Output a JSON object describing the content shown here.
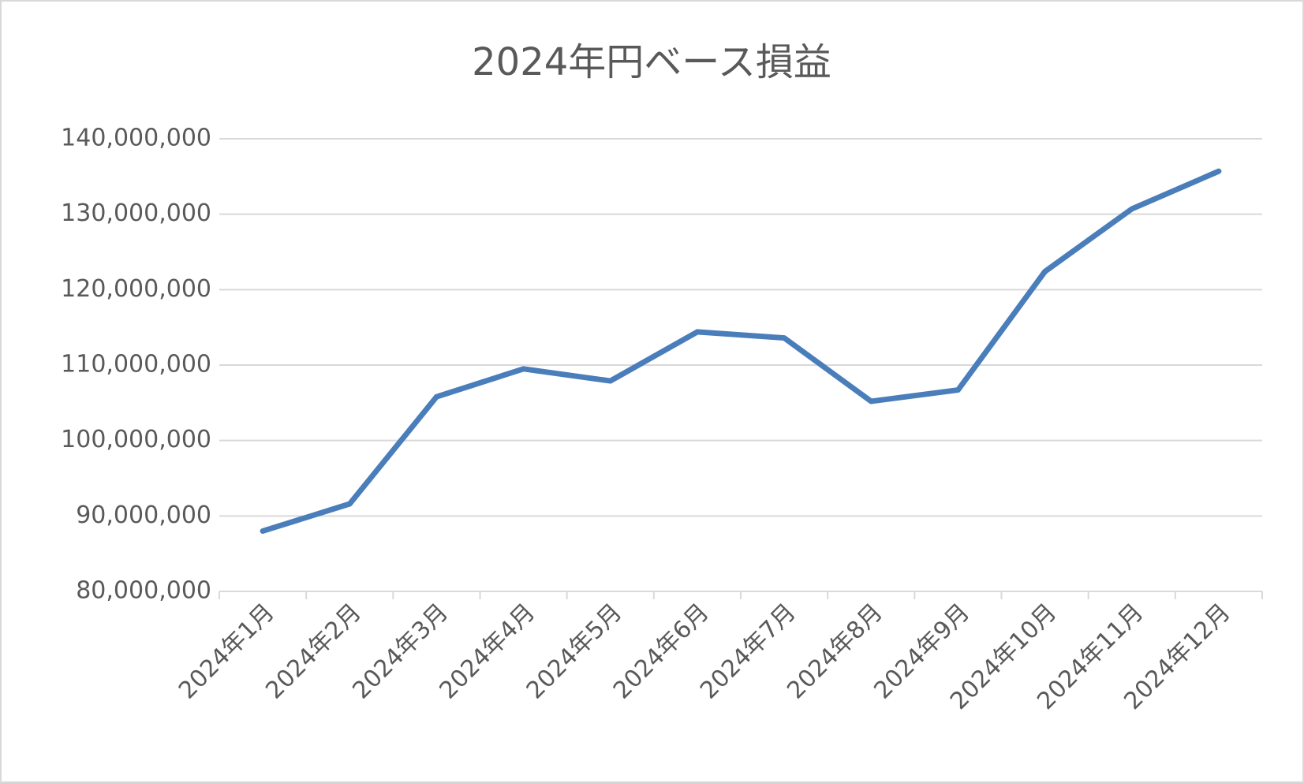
{
  "chart_data": {
    "type": "line",
    "title": "2024年円ベース損益",
    "categories": [
      "2024年1月",
      "2024年2月",
      "2024年3月",
      "2024年4月",
      "2024年5月",
      "2024年6月",
      "2024年7月",
      "2024年8月",
      "2024年9月",
      "2024年10月",
      "2024年11月",
      "2024年12月"
    ],
    "series": [
      {
        "name": "円ベース損益",
        "color": "#4a7ebb",
        "values": [
          88000000,
          91600000,
          105800000,
          109500000,
          107900000,
          114400000,
          113600000,
          105200000,
          106700000,
          122400000,
          130700000,
          135700000
        ]
      }
    ],
    "ylim": [
      80000000,
      140000000
    ],
    "yticks": [
      {
        "value": 80000000,
        "label": "80,000,000"
      },
      {
        "value": 90000000,
        "label": "90,000,000"
      },
      {
        "value": 100000000,
        "label": "100,000,000"
      },
      {
        "value": 110000000,
        "label": "110,000,000"
      },
      {
        "value": 120000000,
        "label": "120,000,000"
      },
      {
        "value": 130000000,
        "label": "130,000,000"
      },
      {
        "value": 140000000,
        "label": "140,000,000"
      }
    ],
    "grid": true
  }
}
